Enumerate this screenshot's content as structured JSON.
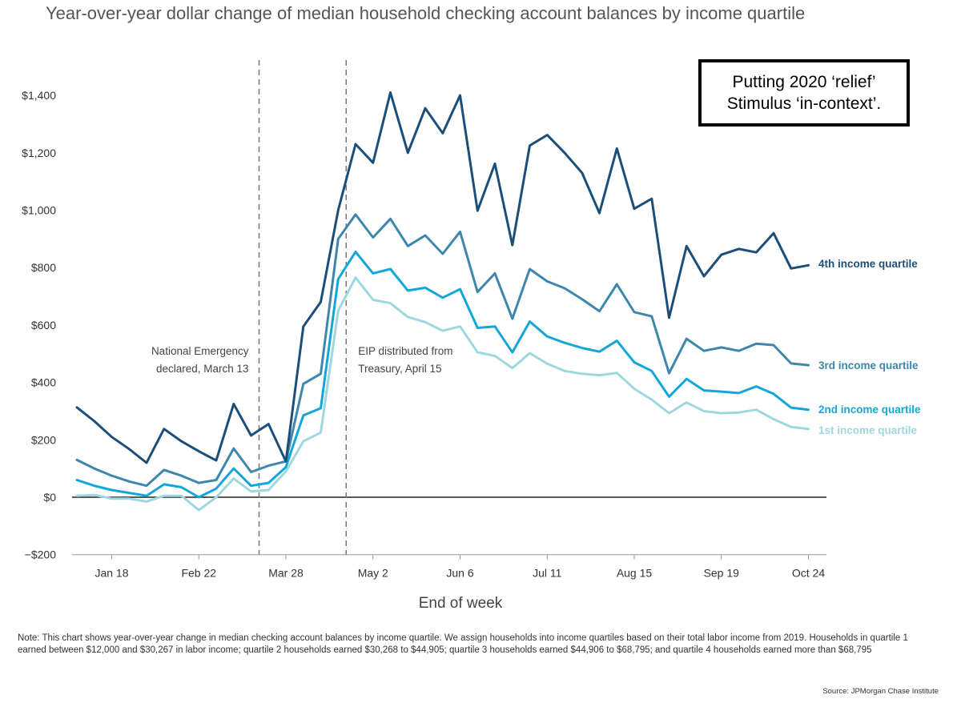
{
  "title": "Year-over-year dollar change of median household checking account balances by income quartile",
  "callout": {
    "line1": "Putting 2020 ‘relief’",
    "line2": "Stimulus ‘in-context’."
  },
  "note": "Note: This chart shows year-over-year change in median checking account balances by income quartile. We assign households into income quartiles based on their total labor income from 2019. Households in quartile 1 earned between $12,000 and $30,267 in labor income; quartile 2 households earned $30,268 to $44,905; quartile 3 households earned $44,906 to $68,795; and quartile 4 households earned more than $68,795",
  "source": "Source: JPMorgan Chase Institute",
  "colors": {
    "q4": "#1b4f7a",
    "q3": "#3f86ad",
    "q2": "#12a7d8",
    "q1": "#9ed8de"
  },
  "chart_data": {
    "type": "line",
    "title": "Year-over-year dollar change of median household checking account balances by income quartile",
    "xlabel": "End of week",
    "ylabel": "",
    "ylim": [
      -200,
      1400
    ],
    "yticks": [
      -200,
      0,
      200,
      400,
      600,
      800,
      1000,
      1200,
      1400
    ],
    "ytick_labels": [
      "−$200",
      "$0",
      "$200",
      "$400",
      "$600",
      "$800",
      "$1,000",
      "$1,200",
      "$1,400"
    ],
    "xtick_labels": [
      "Jan 18",
      "Feb 22",
      "Mar 28",
      "May 2",
      "Jun 6",
      "Jul 11",
      "Aug 15",
      "Sep 19",
      "Oct 24"
    ],
    "xtick_week_index": [
      2,
      7,
      12,
      17,
      22,
      27,
      32,
      37,
      42
    ],
    "grid": false,
    "legend": "labels at right end of lines",
    "annotations": [
      {
        "week_index": 10,
        "lines": [
          "National Emergency",
          "declared, March 13"
        ]
      },
      {
        "week_index": 15,
        "lines": [
          "EIP distributed from",
          "Treasury, April 15"
        ]
      }
    ],
    "series": [
      {
        "name": "4th income quartile",
        "values": [
          313,
          265,
          210,
          168,
          120,
          238,
          195,
          160,
          128,
          325,
          215,
          255,
          125,
          595,
          680,
          1000,
          1230,
          1165,
          1410,
          1200,
          1355,
          1268,
          1400,
          998,
          1162,
          878,
          1225,
          1262,
          1200,
          1130,
          990,
          1215,
          1005,
          1040,
          625,
          875,
          770,
          845,
          865,
          853,
          920,
          797,
          808
        ]
      },
      {
        "name": "3rd income quartile",
        "values": [
          130,
          100,
          75,
          55,
          40,
          95,
          75,
          50,
          60,
          170,
          88,
          110,
          125,
          395,
          430,
          900,
          985,
          905,
          970,
          875,
          912,
          848,
          925,
          715,
          780,
          622,
          795,
          752,
          728,
          690,
          648,
          742,
          645,
          630,
          432,
          552,
          510,
          522,
          510,
          535,
          530,
          466,
          460
        ]
      },
      {
        "name": "2nd income quartile",
        "values": [
          60,
          40,
          25,
          15,
          5,
          45,
          35,
          0,
          30,
          100,
          40,
          50,
          105,
          285,
          310,
          760,
          855,
          780,
          795,
          720,
          730,
          695,
          725,
          590,
          595,
          505,
          612,
          560,
          538,
          520,
          507,
          545,
          470,
          440,
          350,
          412,
          372,
          368,
          363,
          386,
          360,
          312,
          305
        ]
      },
      {
        "name": "1st income quartile",
        "values": [
          5,
          8,
          -5,
          -5,
          -15,
          5,
          5,
          -45,
          0,
          65,
          20,
          25,
          90,
          195,
          225,
          650,
          765,
          688,
          676,
          628,
          610,
          580,
          595,
          505,
          492,
          450,
          502,
          465,
          440,
          430,
          425,
          433,
          378,
          340,
          293,
          330,
          300,
          293,
          295,
          305,
          272,
          245,
          238
        ]
      }
    ]
  }
}
